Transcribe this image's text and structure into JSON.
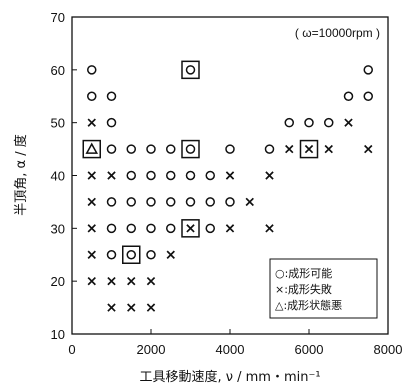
{
  "chart_data": {
    "type": "scatter",
    "xlabel": "工具移動速度, ν / mm・min⁻¹",
    "ylabel": "半頂角, α / 度",
    "annotation": "( ω=10000rpm )",
    "xlim": [
      0,
      8000
    ],
    "ylim": [
      10,
      70
    ],
    "xticks": [
      "0",
      "2000",
      "4000",
      "6000",
      "8000"
    ],
    "yticks": [
      "10",
      "20",
      "30",
      "40",
      "50",
      "60",
      "70"
    ],
    "grid": false,
    "legend_position": "bottom-right",
    "legend": [
      {
        "marker": "circle",
        "label": "○:成形可能"
      },
      {
        "marker": "cross",
        "label": "×:成形失敗"
      },
      {
        "marker": "triangle",
        "label": "△:成形状態悪"
      }
    ],
    "series": [
      {
        "marker": "circle",
        "points": [
          [
            500,
            60
          ],
          [
            500,
            55
          ],
          [
            1000,
            55
          ],
          [
            1000,
            50
          ],
          [
            1000,
            45
          ],
          [
            1500,
            45
          ],
          [
            2000,
            45
          ],
          [
            2500,
            45
          ],
          [
            4000,
            45
          ],
          [
            5000,
            45
          ],
          [
            1500,
            40
          ],
          [
            2000,
            40
          ],
          [
            2500,
            40
          ],
          [
            3000,
            40
          ],
          [
            3500,
            40
          ],
          [
            1000,
            35
          ],
          [
            1500,
            35
          ],
          [
            2000,
            35
          ],
          [
            2500,
            35
          ],
          [
            3000,
            35
          ],
          [
            3500,
            35
          ],
          [
            4000,
            35
          ],
          [
            1000,
            30
          ],
          [
            1500,
            30
          ],
          [
            2000,
            30
          ],
          [
            2500,
            30
          ],
          [
            3500,
            30
          ],
          [
            1000,
            25
          ],
          [
            2000,
            25
          ],
          [
            5500,
            50
          ],
          [
            6000,
            50
          ],
          [
            6500,
            50
          ],
          [
            7000,
            55
          ],
          [
            7500,
            55
          ],
          [
            7500,
            60
          ]
        ]
      },
      {
        "marker": "cross",
        "points": [
          [
            500,
            50
          ],
          [
            500,
            40
          ],
          [
            1000,
            40
          ],
          [
            500,
            35
          ],
          [
            500,
            30
          ],
          [
            500,
            25
          ],
          [
            500,
            20
          ],
          [
            1000,
            20
          ],
          [
            1500,
            20
          ],
          [
            2000,
            20
          ],
          [
            1000,
            15
          ],
          [
            1500,
            15
          ],
          [
            2000,
            15
          ],
          [
            2500,
            25
          ],
          [
            4000,
            40
          ],
          [
            4000,
            30
          ],
          [
            4500,
            35
          ],
          [
            5000,
            40
          ],
          [
            5000,
            30
          ],
          [
            5500,
            45
          ],
          [
            6500,
            45
          ],
          [
            7000,
            50
          ],
          [
            7500,
            45
          ]
        ]
      },
      {
        "marker": "triangle",
        "points": [
          [
            500,
            45
          ]
        ]
      }
    ],
    "boxed_points": [
      [
        500,
        45
      ],
      [
        1500,
        25
      ],
      [
        3000,
        60
      ],
      [
        3000,
        45
      ],
      [
        3000,
        30
      ],
      [
        6000,
        45
      ]
    ],
    "boxed_marker_overrides": [
      {
        "x": 1500,
        "y": 25,
        "marker": "circle"
      },
      {
        "x": 3000,
        "y": 60,
        "marker": "circle"
      },
      {
        "x": 3000,
        "y": 45,
        "marker": "circle"
      },
      {
        "x": 3000,
        "y": 30,
        "marker": "cross"
      },
      {
        "x": 6000,
        "y": 45,
        "marker": "cross"
      }
    ]
  }
}
